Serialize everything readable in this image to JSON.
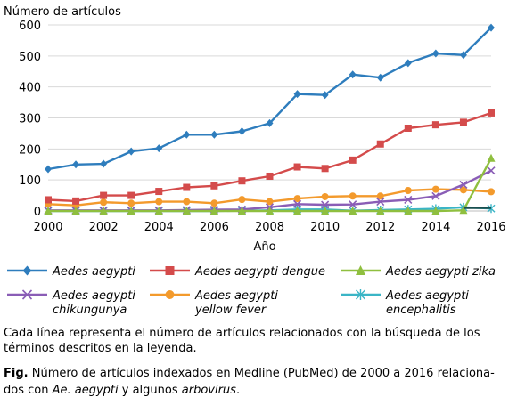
{
  "chart_data": {
    "type": "line",
    "ylabel": "Número de artículos",
    "xlabel": "Año",
    "x": [
      2000,
      2001,
      2002,
      2003,
      2004,
      2005,
      2006,
      2007,
      2008,
      2009,
      2010,
      2011,
      2012,
      2013,
      2014,
      2015,
      2016
    ],
    "xticks": [
      "2000",
      "2002",
      "2004",
      "2006",
      "2008",
      "2010",
      "2012",
      "2014",
      "2016"
    ],
    "xlim": [
      2000,
      2016
    ],
    "ylim": [
      0,
      600
    ],
    "yticks": [
      "0",
      "100",
      "200",
      "300",
      "400",
      "500",
      "600"
    ],
    "grid": "horizontal",
    "legend_position": "bottom",
    "series": [
      {
        "name": "Aedes aegypti",
        "name_lines": [
          "Aedes aegypti"
        ],
        "color": "#2e7dbd",
        "marker": "diamond",
        "x": [
          2000,
          2001,
          2002,
          2003,
          2004,
          2005,
          2006,
          2007,
          2008,
          2009,
          2010,
          2011,
          2012,
          2013,
          2014,
          2015,
          2016
        ],
        "values": [
          135,
          150,
          152,
          192,
          202,
          246,
          246,
          257,
          283,
          377,
          374,
          440,
          430,
          477,
          508,
          503,
          591
        ]
      },
      {
        "name": "Aedes aegypti dengue",
        "name_lines": [
          "Aedes aegypti dengue"
        ],
        "color": "#d44b4b",
        "marker": "square",
        "x": [
          2000,
          2001,
          2002,
          2003,
          2004,
          2005,
          2006,
          2007,
          2008,
          2009,
          2010,
          2011,
          2012,
          2013,
          2014,
          2015,
          2016
        ],
        "values": [
          36,
          32,
          50,
          50,
          63,
          76,
          81,
          97,
          112,
          142,
          137,
          164,
          216,
          267,
          278,
          286,
          316
        ]
      },
      {
        "name": "Aedes aegypti zika",
        "name_lines": [
          "Aedes aegypti zika"
        ],
        "color": "#8fbf3f",
        "marker": "triangle",
        "x": [
          2000,
          2001,
          2002,
          2003,
          2004,
          2005,
          2006,
          2007,
          2008,
          2009,
          2010,
          2011,
          2012,
          2013,
          2014,
          2015,
          2016
        ],
        "values": [
          0,
          0,
          0,
          0,
          0,
          0,
          0,
          0,
          0,
          0,
          0,
          0,
          0,
          0,
          0,
          2,
          170
        ]
      },
      {
        "name": "Aedes aegypti chikungunya",
        "name_lines": [
          "Aedes aegypti",
          "chikungunya"
        ],
        "color": "#8a5db6",
        "marker": "x",
        "x": [
          2000,
          2001,
          2002,
          2003,
          2004,
          2005,
          2006,
          2007,
          2008,
          2009,
          2010,
          2011,
          2012,
          2013,
          2014,
          2015,
          2016
        ],
        "values": [
          2,
          2,
          2,
          2,
          2,
          3,
          4,
          5,
          12,
          22,
          20,
          21,
          30,
          36,
          48,
          85,
          130
        ]
      },
      {
        "name": "Aedes aegypti yellow fever",
        "name_lines": [
          "Aedes aegypti",
          "yellow fever"
        ],
        "color": "#f39a2c",
        "marker": "circle",
        "x": [
          2000,
          2001,
          2002,
          2003,
          2004,
          2005,
          2006,
          2007,
          2008,
          2009,
          2010,
          2011,
          2012,
          2013,
          2014,
          2015,
          2016
        ],
        "values": [
          22,
          18,
          28,
          25,
          30,
          30,
          25,
          37,
          30,
          40,
          46,
          48,
          48,
          66,
          70,
          68,
          62
        ]
      },
      {
        "name": "Aedes aegypti encephalitis",
        "name_lines": [
          "Aedes aegypti",
          "encephalitis"
        ],
        "color": "#3ab5c6",
        "marker": "asterisk",
        "x": [
          2000,
          2001,
          2002,
          2003,
          2004,
          2005,
          2006,
          2007,
          2008,
          2009,
          2010,
          2011,
          2012,
          2013,
          2014,
          2015,
          2016
        ],
        "values": [
          0,
          0,
          0,
          0,
          0,
          0,
          0,
          1,
          2,
          5,
          5,
          1,
          3,
          5,
          7,
          12,
          8
        ]
      }
    ],
    "extra_line": {
      "color": "#1a4f4f",
      "x": [
        2015,
        2016
      ],
      "values": [
        10,
        10
      ]
    }
  },
  "notes": "Cada línea representa el número de artículos relacionados con la búsqueda de los términos descritos en la leyenda.",
  "caption": {
    "label": "Fig.",
    "part1": " Número de artículos indexados en Medline (PubMed) de 2000 a 2016 relaciona-dos con ",
    "italic1": "Ae. aegypti",
    "part2": " y algunos ",
    "italic2": "arbovirus",
    "part3": "."
  }
}
